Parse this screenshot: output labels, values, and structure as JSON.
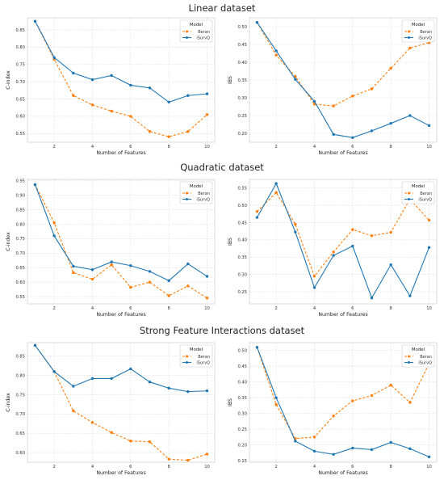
{
  "sections": [
    {
      "title": "Linear dataset"
    },
    {
      "title": "Quadratic dataset"
    },
    {
      "title": "Strong Feature Interactions dataset"
    }
  ],
  "legend_title": "Model",
  "colors": {
    "Beran": "#ff7f0e",
    "iSurvQ": "#1f77b4"
  },
  "chart_data": [
    {
      "type": "line",
      "section": "Linear dataset",
      "xlabel": "Number of Features",
      "ylabel": "C-index",
      "x": [
        1,
        2,
        3,
        4,
        5,
        6,
        7,
        8,
        9,
        10
      ],
      "xlim": [
        0.6,
        10.4
      ],
      "xticks": [
        2,
        4,
        6,
        8,
        10
      ],
      "ylim": [
        0.525,
        0.885
      ],
      "yticks": [
        0.55,
        0.6,
        0.65,
        0.7,
        0.75,
        0.8,
        0.85
      ],
      "series": [
        {
          "name": "Beran",
          "values": [
            0.875,
            0.765,
            0.66,
            0.633,
            0.615,
            0.6,
            0.556,
            0.541,
            0.556,
            0.605
          ]
        },
        {
          "name": "iSurvQ",
          "values": [
            0.875,
            0.77,
            0.725,
            0.706,
            0.718,
            0.69,
            0.682,
            0.641,
            0.66,
            0.665
          ]
        }
      ]
    },
    {
      "type": "line",
      "section": "Linear dataset",
      "xlabel": "Number of Features",
      "ylabel": "IBS",
      "x": [
        1,
        2,
        3,
        4,
        5,
        6,
        7,
        8,
        9,
        10
      ],
      "xlim": [
        0.6,
        10.4
      ],
      "xticks": [
        2,
        4,
        6,
        8,
        10
      ],
      "ylim": [
        0.175,
        0.525
      ],
      "yticks": [
        0.2,
        0.25,
        0.3,
        0.35,
        0.4,
        0.45,
        0.5
      ],
      "series": [
        {
          "name": "Beran",
          "values": [
            0.512,
            0.42,
            0.36,
            0.282,
            0.277,
            0.305,
            0.325,
            0.383,
            0.44,
            0.455
          ]
        },
        {
          "name": "iSurvQ",
          "values": [
            0.512,
            0.432,
            0.352,
            0.29,
            0.197,
            0.188,
            0.207,
            0.228,
            0.25,
            0.222
          ]
        }
      ]
    },
    {
      "type": "line",
      "section": "Quadratic dataset",
      "xlabel": "Number of Features",
      "ylabel": "C-index",
      "x": [
        1,
        2,
        3,
        4,
        5,
        6,
        7,
        8,
        9,
        10
      ],
      "xlim": [
        0.6,
        10.4
      ],
      "xticks": [
        2,
        4,
        6,
        8,
        10
      ],
      "ylim": [
        0.525,
        0.955
      ],
      "yticks": [
        0.55,
        0.6,
        0.65,
        0.7,
        0.75,
        0.8,
        0.85,
        0.9,
        0.95
      ],
      "series": [
        {
          "name": "Beran",
          "values": [
            0.937,
            0.805,
            0.633,
            0.61,
            0.66,
            0.582,
            0.6,
            0.553,
            0.587,
            0.545
          ]
        },
        {
          "name": "iSurvQ",
          "values": [
            0.937,
            0.76,
            0.655,
            0.643,
            0.67,
            0.657,
            0.637,
            0.605,
            0.663,
            0.62
          ]
        }
      ]
    },
    {
      "type": "line",
      "section": "Quadratic dataset",
      "xlabel": "Number of Features",
      "ylabel": "IBS",
      "x": [
        1,
        2,
        3,
        4,
        5,
        6,
        7,
        8,
        9,
        10
      ],
      "xlim": [
        0.6,
        10.4
      ],
      "xticks": [
        2,
        4,
        6,
        8,
        10
      ],
      "ylim": [
        0.215,
        0.575
      ],
      "yticks": [
        0.25,
        0.3,
        0.35,
        0.4,
        0.45,
        0.5,
        0.55
      ],
      "series": [
        {
          "name": "Beran",
          "values": [
            0.482,
            0.537,
            0.445,
            0.295,
            0.365,
            0.43,
            0.412,
            0.422,
            0.518,
            0.457
          ]
        },
        {
          "name": "iSurvQ",
          "values": [
            0.465,
            0.563,
            0.423,
            0.262,
            0.355,
            0.382,
            0.232,
            0.328,
            0.238,
            0.378
          ]
        }
      ]
    },
    {
      "type": "line",
      "section": "Strong Feature Interactions dataset",
      "xlabel": "Number of Features",
      "ylabel": "C-index",
      "x": [
        1,
        2,
        3,
        4,
        5,
        6,
        7,
        8,
        9,
        10
      ],
      "xlim": [
        0.6,
        10.4
      ],
      "xticks": [
        2,
        4,
        6,
        8,
        10
      ],
      "ylim": [
        0.575,
        0.885
      ],
      "yticks": [
        0.6,
        0.65,
        0.7,
        0.75,
        0.8,
        0.85
      ],
      "series": [
        {
          "name": "Beran",
          "values": [
            0.878,
            0.81,
            0.708,
            0.678,
            0.652,
            0.63,
            0.628,
            0.583,
            0.58,
            0.596
          ]
        },
        {
          "name": "iSurvQ",
          "values": [
            0.878,
            0.81,
            0.772,
            0.792,
            0.792,
            0.817,
            0.783,
            0.767,
            0.758,
            0.76
          ]
        }
      ]
    },
    {
      "type": "line",
      "section": "Strong Feature Interactions dataset",
      "xlabel": "Number of Features",
      "ylabel": "IBS",
      "x": [
        1,
        2,
        3,
        4,
        5,
        6,
        7,
        8,
        9,
        10
      ],
      "xlim": [
        0.6,
        10.4
      ],
      "xticks": [
        2,
        4,
        6,
        8,
        10
      ],
      "ylim": [
        0.145,
        0.525
      ],
      "yticks": [
        0.15,
        0.2,
        0.25,
        0.3,
        0.35,
        0.4,
        0.45,
        0.5
      ],
      "series": [
        {
          "name": "Beran",
          "values": [
            0.51,
            0.328,
            0.22,
            0.225,
            0.292,
            0.34,
            0.357,
            0.39,
            0.335,
            0.458
          ]
        },
        {
          "name": "iSurvQ",
          "values": [
            0.51,
            0.35,
            0.212,
            0.18,
            0.17,
            0.19,
            0.185,
            0.208,
            0.188,
            0.162
          ]
        }
      ]
    }
  ]
}
